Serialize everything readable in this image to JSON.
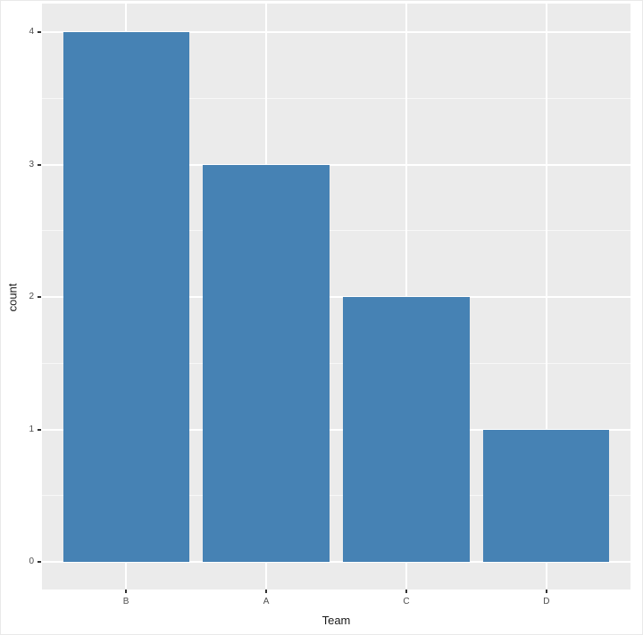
{
  "chart_data": {
    "type": "bar",
    "categories": [
      "B",
      "A",
      "C",
      "D"
    ],
    "values": [
      4,
      3,
      2,
      1
    ],
    "title": "",
    "xlabel": "Team",
    "ylabel": "count",
    "ylim": [
      0,
      4
    ],
    "yticks": [
      0,
      1,
      2,
      3,
      4
    ],
    "yminor": [
      0.5,
      1.5,
      2.5,
      3.5
    ],
    "legend": "none",
    "grid": "on",
    "colors": {
      "bar_fill": "#4682b4",
      "panel_background": "#ebebeb",
      "grid_major": "#ffffff",
      "grid_minor": "#f7f7f7",
      "tick_label": "#4d4d4d",
      "axis_title": "#1a1a1a",
      "tick_mark": "#333333"
    }
  }
}
